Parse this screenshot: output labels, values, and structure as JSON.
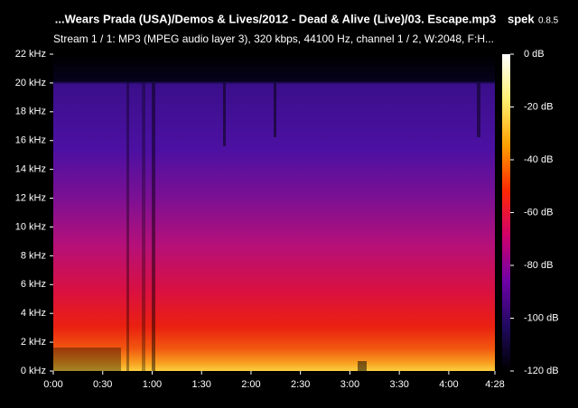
{
  "chart_data": {
    "type": "spectrogram",
    "title": "...Wears Prada (USA)/Demos & Lives/2012 - Dead & Alive (Live)/03. Escape.mp3",
    "app_name": "spek",
    "app_version": "0.8.5",
    "subtitle": "Stream 1 / 1: MP3 (MPEG audio layer 3), 320 kbps, 44100 Hz, channel 1 / 2, W:2048, F:H...",
    "xlim": [
      0,
      268
    ],
    "xticks": [
      {
        "value": 0,
        "label": "0:00"
      },
      {
        "value": 30,
        "label": "0:30"
      },
      {
        "value": 60,
        "label": "1:00"
      },
      {
        "value": 90,
        "label": "1:30"
      },
      {
        "value": 120,
        "label": "2:00"
      },
      {
        "value": 150,
        "label": "2:30"
      },
      {
        "value": 180,
        "label": "3:00"
      },
      {
        "value": 210,
        "label": "3:30"
      },
      {
        "value": 240,
        "label": "4:00"
      },
      {
        "value": 268,
        "label": "4:28"
      }
    ],
    "ylim": [
      0,
      22
    ],
    "yticks": [
      {
        "value": 0,
        "label": "0 kHz"
      },
      {
        "value": 2,
        "label": "2 kHz"
      },
      {
        "value": 4,
        "label": "4 kHz"
      },
      {
        "value": 6,
        "label": "6 kHz"
      },
      {
        "value": 8,
        "label": "8 kHz"
      },
      {
        "value": 10,
        "label": "10 kHz"
      },
      {
        "value": 12,
        "label": "12 kHz"
      },
      {
        "value": 14,
        "label": "14 kHz"
      },
      {
        "value": 16,
        "label": "16 kHz"
      },
      {
        "value": 18,
        "label": "18 kHz"
      },
      {
        "value": 20,
        "label": "20 kHz"
      },
      {
        "value": 22,
        "label": "22 kHz"
      }
    ],
    "clim": [
      -120,
      0
    ],
    "cticks": [
      {
        "value": 0,
        "label": "0 dB"
      },
      {
        "value": -20,
        "label": "-20 dB"
      },
      {
        "value": -40,
        "label": "-40 dB"
      },
      {
        "value": -60,
        "label": "-60 dB"
      },
      {
        "value": -80,
        "label": "-80 dB"
      },
      {
        "value": -100,
        "label": "-100 dB"
      },
      {
        "value": -120,
        "label": "-120 dB"
      }
    ],
    "colormap": [
      "#ffffff",
      "#fff070",
      "#ffa000",
      "#ff2a00",
      "#d0006a",
      "#7000a8",
      "#200a60",
      "#000000"
    ]
  }
}
